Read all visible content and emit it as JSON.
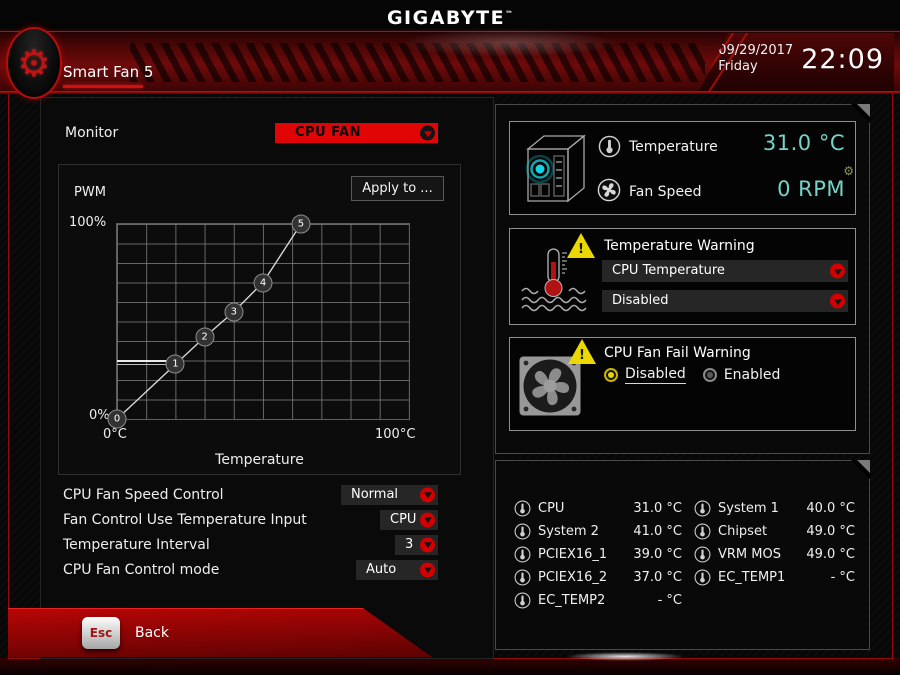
{
  "header": {
    "brand": "GIGABYTE",
    "brand_tm": "™",
    "tab": "Smart Fan 5",
    "date": "09/29/2017",
    "weekday": "Friday",
    "time": "22:09"
  },
  "monitor": {
    "label": "Monitor",
    "value": "CPU FAN"
  },
  "chart_data": {
    "type": "line",
    "axis_label": "PWM",
    "xlabel": "Temperature",
    "y_max_label": "100%",
    "y_min_label": "0%",
    "x_min_label": "0°C",
    "x_max_label": "100°C",
    "xlim": [
      0,
      100
    ],
    "ylim": [
      0,
      100
    ],
    "grid": true,
    "apply_button": "Apply to ...",
    "points": [
      {
        "label": "0",
        "temp_c": 0,
        "pwm_pct": 0
      },
      {
        "label": "1",
        "temp_c": 20,
        "pwm_pct": 28
      },
      {
        "label": "2",
        "temp_c": 30,
        "pwm_pct": 42
      },
      {
        "label": "3",
        "temp_c": 40,
        "pwm_pct": 55
      },
      {
        "label": "4",
        "temp_c": 50,
        "pwm_pct": 70
      },
      {
        "label": "5",
        "temp_c": 63,
        "pwm_pct": 100
      }
    ],
    "current_level": {
      "pwm_pct": 28,
      "temp_to_c": 20
    }
  },
  "controls": {
    "rows": [
      {
        "label": "CPU Fan Speed Control",
        "value": "Normal"
      },
      {
        "label": "Fan Control Use Temperature Input",
        "value": "CPU"
      },
      {
        "label": "Temperature Interval",
        "value": "3"
      },
      {
        "label": "CPU Fan Control mode",
        "value": "Auto"
      }
    ]
  },
  "status": {
    "temperature_label": "Temperature",
    "temperature_value": "31.0 °C",
    "fan_speed_label": "Fan Speed",
    "fan_speed_value": "0 RPM"
  },
  "temperature_warning": {
    "title": "Temperature Warning",
    "source": "CPU Temperature",
    "mode": "Disabled"
  },
  "fan_fail_warning": {
    "title": "CPU Fan Fail Warning",
    "disabled_label": "Disabled",
    "enabled_label": "Enabled",
    "selected": "Disabled"
  },
  "sensors": {
    "left": [
      {
        "name": "CPU",
        "value": "31.0 °C"
      },
      {
        "name": "System 2",
        "value": "41.0 °C"
      },
      {
        "name": "PCIEX16_1",
        "value": "39.0 °C"
      },
      {
        "name": "PCIEX16_2",
        "value": "37.0 °C"
      },
      {
        "name": "EC_TEMP2",
        "value": "- °C"
      }
    ],
    "right": [
      {
        "name": "System 1",
        "value": "40.0 °C"
      },
      {
        "name": "Chipset",
        "value": "49.0 °C"
      },
      {
        "name": "VRM MOS",
        "value": "49.0 °C"
      },
      {
        "name": "EC_TEMP1",
        "value": "- °C"
      }
    ]
  },
  "footer": {
    "esc_key": "Esc",
    "back_label": "Back"
  },
  "icons": {
    "gear": "⚙"
  },
  "colors": {
    "accent_red": "#d60000",
    "value_teal": "#74d4c8",
    "warning_yellow": "#ead800"
  }
}
